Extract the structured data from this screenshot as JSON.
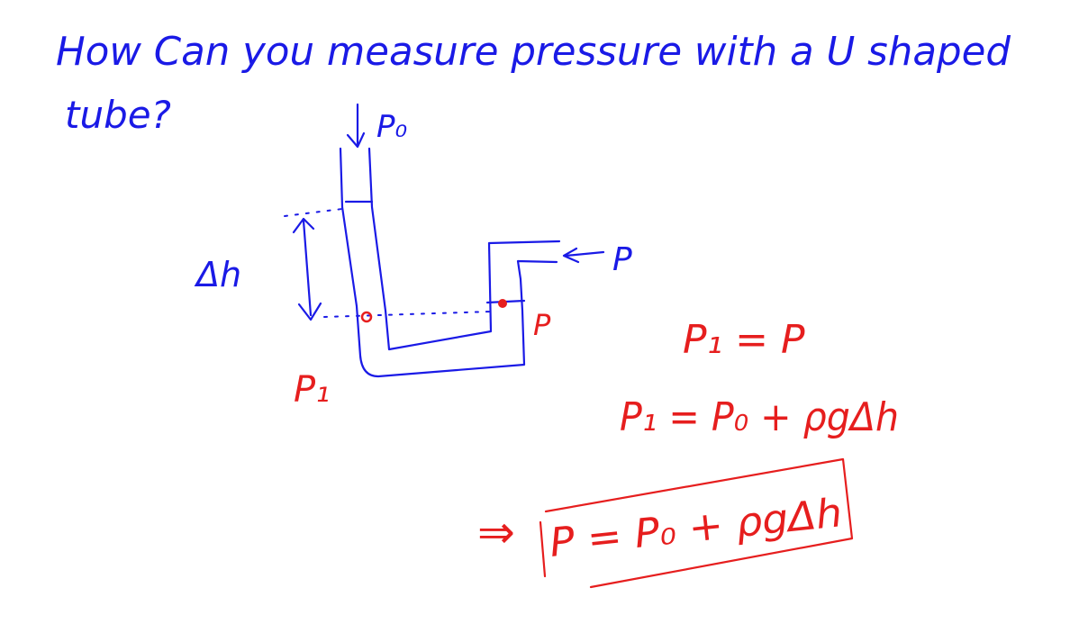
{
  "question": {
    "line1": "How Can you measure pressure with a U shaped",
    "line2": "tube?"
  },
  "diagram": {
    "label_p0": "P₀",
    "label_delta_h": "Δh",
    "label_p_arrow": "P",
    "label_p_point": "P",
    "label_p1": "P₁"
  },
  "equations": {
    "eq1": "P₁ = P",
    "eq2": "P₁ = P₀ + ρgΔh",
    "arrow": "⇒",
    "result": "P = P₀ + ρgΔh"
  },
  "colors": {
    "blue_ink": "#1a1ae6",
    "red_ink": "#e61e1e",
    "background": "#ffffff"
  }
}
